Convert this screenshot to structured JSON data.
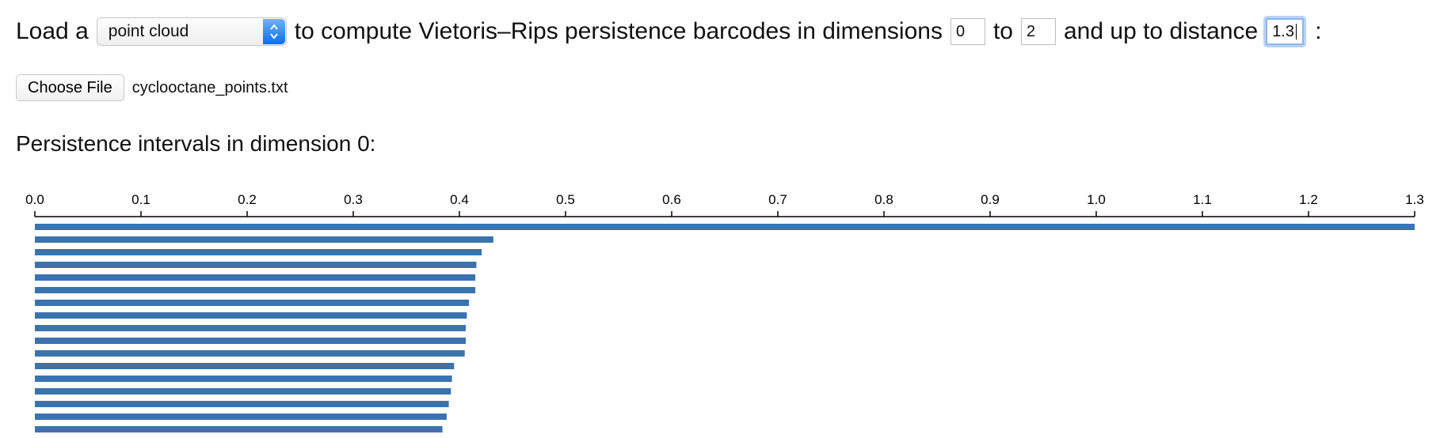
{
  "controls": {
    "text_load": "Load a",
    "select_value": "point cloud",
    "text_compute": "to compute Vietoris–Rips persistence barcodes in dimensions",
    "dim_min": "0",
    "text_to": "to",
    "dim_max": "2",
    "text_distance": "and up to distance",
    "distance": "1.3",
    "text_colon": ":"
  },
  "file": {
    "button_label": "Choose File",
    "filename": "cyclooctane_points.txt"
  },
  "section": {
    "title": "Persistence intervals in dimension 0:"
  },
  "colors": {
    "bar": "#3b73ad",
    "select_accent": "#2f86f3"
  },
  "chart_data": {
    "type": "bar",
    "orientation": "horizontal",
    "axis_position": "top",
    "xlim": [
      0.0,
      1.3
    ],
    "ticks": [
      "0.0",
      "0.1",
      "0.2",
      "0.3",
      "0.4",
      "0.5",
      "0.6",
      "0.7",
      "0.8",
      "0.9",
      "1.0",
      "1.1",
      "1.2",
      "1.3"
    ],
    "intervals": [
      [
        0.0,
        1.3
      ],
      [
        0.0,
        0.432
      ],
      [
        0.0,
        0.421
      ],
      [
        0.0,
        0.416
      ],
      [
        0.0,
        0.415
      ],
      [
        0.0,
        0.415
      ],
      [
        0.0,
        0.409
      ],
      [
        0.0,
        0.407
      ],
      [
        0.0,
        0.406
      ],
      [
        0.0,
        0.406
      ],
      [
        0.0,
        0.405
      ],
      [
        0.0,
        0.395
      ],
      [
        0.0,
        0.393
      ],
      [
        0.0,
        0.392
      ],
      [
        0.0,
        0.39
      ],
      [
        0.0,
        0.388
      ],
      [
        0.0,
        0.384
      ]
    ]
  }
}
